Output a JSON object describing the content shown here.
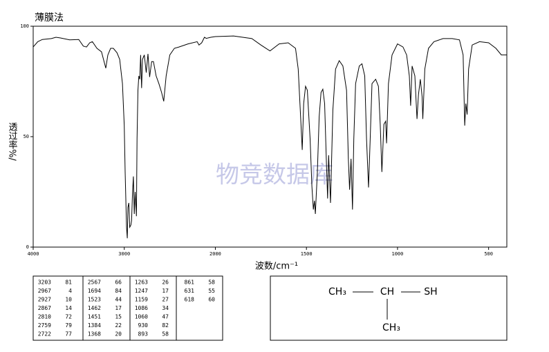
{
  "chart_data": {
    "type": "line",
    "title": "薄膜法",
    "x_label": "波数/cm⁻¹",
    "y_label": "透过率%/",
    "watermark": "物竞数据库",
    "color": "#000000",
    "x": [
      4000,
      3950,
      3900,
      3800,
      3750,
      3700,
      3600,
      3500,
      3450,
      3415,
      3380,
      3350,
      3300,
      3250,
      3203,
      3180,
      3150,
      3120,
      3080,
      3050,
      3020,
      3000,
      2990,
      2975,
      2967,
      2960,
      2950,
      2940,
      2927,
      2920,
      2910,
      2900,
      2890,
      2880,
      2867,
      2860,
      2850,
      2840,
      2830,
      2820,
      2810,
      2800,
      2780,
      2759,
      2740,
      2722,
      2700,
      2680,
      2650,
      2620,
      2590,
      2567,
      2540,
      2500,
      2450,
      2400,
      2300,
      2200,
      2180,
      2150,
      2120,
      2100,
      2050,
      2000,
      1900,
      1800,
      1750,
      1700,
      1650,
      1600,
      1560,
      1545,
      1530,
      1523,
      1515,
      1505,
      1495,
      1480,
      1470,
      1462,
      1456,
      1451,
      1440,
      1430,
      1420,
      1410,
      1400,
      1390,
      1384,
      1378,
      1368,
      1355,
      1340,
      1320,
      1300,
      1280,
      1270,
      1263,
      1255,
      1247,
      1240,
      1230,
      1210,
      1195,
      1180,
      1170,
      1159,
      1150,
      1140,
      1120,
      1105,
      1095,
      1086,
      1075,
      1065,
      1060,
      1050,
      1030,
      1000,
      970,
      950,
      935,
      928,
      920,
      905,
      893,
      885,
      875,
      865,
      861,
      850,
      830,
      800,
      750,
      700,
      660,
      640,
      631,
      625,
      618,
      610,
      590,
      550,
      500,
      460,
      430,
      400
    ],
    "values": [
      90.6,
      93,
      94,
      94.4,
      95,
      94.7,
      93.8,
      94,
      91,
      90.6,
      92.5,
      93,
      90,
      88.4,
      81,
      87,
      90,
      90,
      88,
      85,
      74,
      55,
      34,
      9,
      4,
      18,
      20,
      9,
      10,
      12,
      24,
      32,
      15,
      25,
      14,
      49,
      71,
      77.5,
      76,
      87,
      72,
      85,
      87,
      79,
      87.5,
      77,
      84,
      84,
      77.5,
      74,
      70,
      66,
      77.5,
      87,
      90,
      90.6,
      92,
      93,
      91.5,
      92.5,
      95,
      94.5,
      95,
      95.3,
      95.6,
      94.4,
      91.5,
      88.8,
      92,
      92.5,
      90,
      80.6,
      55.6,
      44,
      65,
      72.8,
      71,
      49,
      27.5,
      17,
      21,
      15,
      34,
      59,
      70,
      71.5,
      65,
      37,
      22,
      41.6,
      20,
      62,
      80.6,
      84.4,
      82,
      71,
      40,
      26,
      40,
      17,
      49,
      74,
      82,
      83,
      77.5,
      49,
      27,
      49,
      74,
      76,
      72.8,
      55.6,
      34,
      55.6,
      57,
      47,
      74,
      87,
      92,
      90.6,
      87,
      77.5,
      64,
      82,
      77.5,
      58,
      69,
      76,
      68,
      58,
      80.6,
      90,
      93,
      94.4,
      94.4,
      93.8,
      87,
      55,
      65,
      60,
      80.6,
      91.5,
      93,
      92.5,
      90,
      87,
      87
    ],
    "xlim": [
      4000,
      400
    ],
    "xticks": [
      4000,
      3000,
      2000,
      1500,
      1000,
      500
    ],
    "ylim": [
      0,
      100
    ],
    "yticks": [
      0,
      50,
      100
    ]
  },
  "peak_table": [
    [
      [
        3203,
        81
      ],
      [
        2967,
        4
      ],
      [
        2927,
        10
      ],
      [
        2867,
        14
      ],
      [
        2810,
        72
      ],
      [
        2759,
        79
      ],
      [
        2722,
        77
      ]
    ],
    [
      [
        2567,
        66
      ],
      [
        1694,
        84
      ],
      [
        1523,
        44
      ],
      [
        1462,
        17
      ],
      [
        1451,
        15
      ],
      [
        1384,
        22
      ],
      [
        1368,
        20
      ]
    ],
    [
      [
        1263,
        26
      ],
      [
        1247,
        17
      ],
      [
        1159,
        27
      ],
      [
        1086,
        34
      ],
      [
        1060,
        47
      ],
      [
        930,
        82
      ],
      [
        893,
        58
      ]
    ],
    [
      [
        861,
        58
      ],
      [
        631,
        55
      ],
      [
        618,
        60
      ]
    ]
  ],
  "structure": {
    "nodes": [
      {
        "label": "CH₃"
      },
      {
        "label": "CH"
      },
      {
        "label": "SH"
      },
      {
        "label": "CH₃"
      }
    ]
  }
}
